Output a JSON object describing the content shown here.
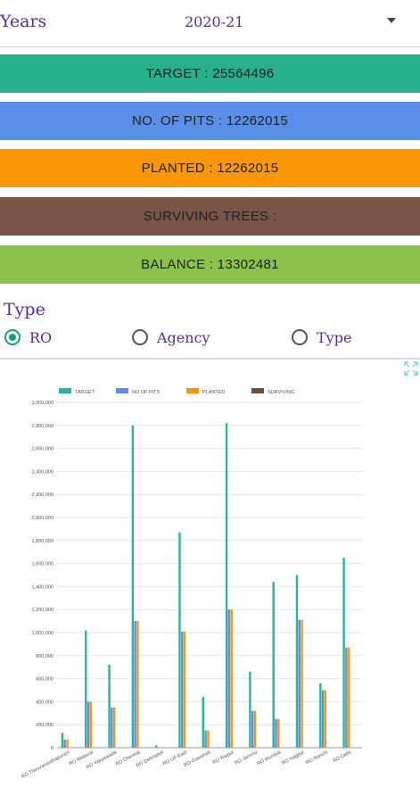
{
  "header": {
    "years_label": "Years",
    "year_value": "2020-21"
  },
  "stats": [
    {
      "text": "TARGET : 25564496",
      "color": "#26b08d"
    },
    {
      "text": "NO. OF PITS : 12262015",
      "color": "#5b8ee6"
    },
    {
      "text": "PLANTED : 12262015",
      "color": "#fb9704"
    },
    {
      "text": "SURVIVING TREES :",
      "color": "#795548"
    },
    {
      "text": "BALANCE : 13302481",
      "color": "#8bc34a"
    }
  ],
  "type_filter": {
    "label": "Type",
    "options": [
      {
        "label": "RO",
        "selected": true
      },
      {
        "label": "Agency",
        "selected": false
      },
      {
        "label": "Type",
        "selected": false
      }
    ]
  },
  "chart_data": {
    "type": "bar",
    "categories": [
      "RO Thiruvananthapuram",
      "RO Madurai",
      "RO Vijayawada",
      "RO Chennai",
      "RO Dehradun",
      "RO UP East",
      "RO Guwahati",
      "RO Raipur",
      "RO Jammu",
      "RO Mumbai",
      "RO Nagpur",
      "RO Ranchi",
      "RO Delhi"
    ],
    "series": [
      {
        "name": "TARGET",
        "color": "#2bb598",
        "values": [
          130000,
          1020000,
          720000,
          2800000,
          20000,
          1870000,
          440000,
          2820000,
          660000,
          1440000,
          1500000,
          560000,
          1650000
        ]
      },
      {
        "name": "NO OF PITS",
        "color": "#5b8ee6",
        "values": [
          70000,
          400000,
          350000,
          1100000,
          0,
          1010000,
          150000,
          1200000,
          320000,
          250000,
          1110000,
          500000,
          870000
        ]
      },
      {
        "name": "PLANTED",
        "color": "#fb9704",
        "values": [
          70000,
          400000,
          350000,
          1100000,
          0,
          1010000,
          150000,
          1200000,
          320000,
          250000,
          1110000,
          500000,
          870000
        ]
      },
      {
        "name": "SURVIVING",
        "color": "#6d4c41",
        "values": [
          0,
          0,
          0,
          0,
          0,
          0,
          0,
          0,
          0,
          0,
          0,
          0,
          0
        ]
      }
    ],
    "ylim": [
      0,
      3000000
    ],
    "yticks": [
      "0",
      "200,000",
      "400,000",
      "600,000",
      "800,000",
      "1,000,000",
      "1,200,000",
      "1,400,000",
      "1,600,000",
      "1,800,000",
      "2,000,000",
      "2,200,000",
      "2,400,000",
      "2,600,000",
      "2,800,000",
      "3,000,000"
    ],
    "grid": true,
    "legend": "top"
  }
}
